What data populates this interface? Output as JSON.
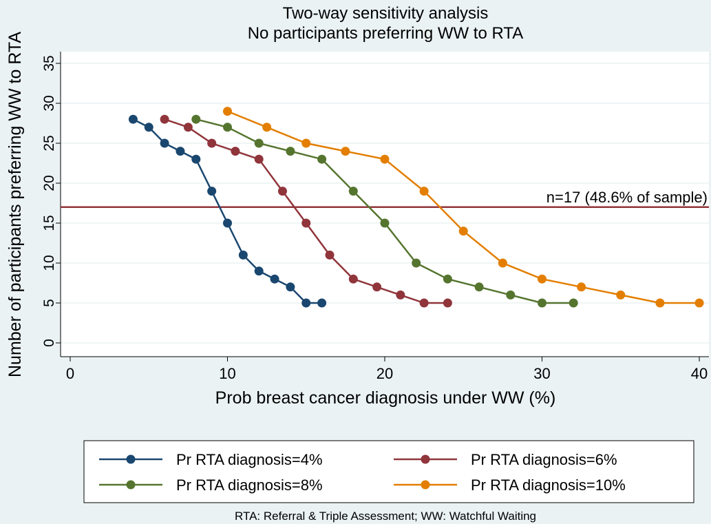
{
  "chart_data": {
    "type": "line",
    "title": "Two-way sensitivity analysis",
    "subtitle": "No participants preferring WW to RTA",
    "x_label": "Prob breast cancer diagnosis under WW (%)",
    "y_label": "Number of participants preferring WW to RTA",
    "note": "RTA: Referral & Triple Assessment; WW: Watchful Waiting",
    "xlim": [
      0,
      40
    ],
    "xticks": [
      0,
      10,
      20,
      30,
      40
    ],
    "ylim": [
      0,
      35
    ],
    "yticks": [
      0,
      5,
      10,
      15,
      20,
      25,
      30,
      35
    ],
    "grid": true,
    "reference_line": {
      "value": 17,
      "label": "n=17 (48.6% of sample)",
      "color": "#90353b"
    },
    "series": [
      {
        "name": "Pr RTA diagnosis=4%",
        "color": "#1a476f",
        "x": [
          4,
          5,
          6,
          7,
          8,
          9,
          10,
          11,
          12,
          13,
          14,
          15,
          16
        ],
        "values": [
          28,
          27,
          25,
          24,
          23,
          19,
          15,
          11,
          9,
          8,
          7,
          5,
          5
        ]
      },
      {
        "name": "Pr RTA diagnosis=6%",
        "color": "#90353b",
        "x": [
          6,
          7.5,
          9,
          10.5,
          12,
          13.5,
          15,
          16.5,
          18,
          19.5,
          21,
          22.5,
          24
        ],
        "values": [
          28,
          27,
          25,
          24,
          23,
          19,
          15,
          11,
          8,
          7,
          6,
          5,
          5
        ]
      },
      {
        "name": "Pr RTA diagnosis=8%",
        "color": "#55752f",
        "x": [
          8,
          10,
          12,
          14,
          16,
          18,
          20,
          22,
          24,
          26,
          28,
          30,
          32
        ],
        "values": [
          28,
          27,
          25,
          24,
          23,
          19,
          15,
          10,
          8,
          7,
          6,
          5,
          5
        ]
      },
      {
        "name": "Pr RTA diagnosis=10%",
        "color": "#e37e00",
        "x": [
          10,
          12.5,
          15,
          17.5,
          20,
          22.5,
          25,
          27.5,
          30,
          32.5,
          35,
          37.5,
          40
        ],
        "values": [
          29,
          27,
          25,
          24,
          23,
          19,
          14,
          10,
          8,
          7,
          6,
          5,
          5
        ]
      }
    ]
  }
}
